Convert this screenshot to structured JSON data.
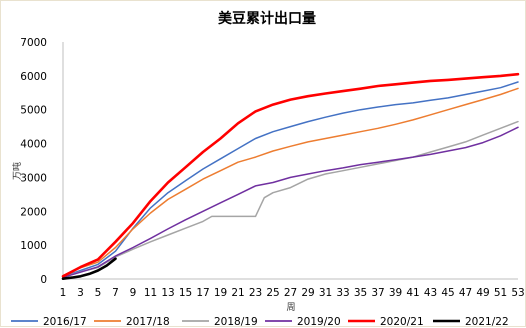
{
  "chart_data": {
    "type": "line",
    "title": "美豆累计出口量",
    "xlabel": "周",
    "ylabel": "万吨",
    "xlim": [
      1,
      53
    ],
    "ylim": [
      0,
      7000
    ],
    "x_ticks": [
      1,
      3,
      5,
      7,
      9,
      11,
      13,
      15,
      17,
      19,
      21,
      23,
      25,
      27,
      29,
      31,
      33,
      35,
      37,
      39,
      41,
      43,
      45,
      47,
      49,
      51,
      53
    ],
    "y_ticks": [
      0,
      1000,
      2000,
      3000,
      4000,
      5000,
      6000,
      7000
    ],
    "grid": false,
    "legend_position": "bottom",
    "series": [
      {
        "name": "2016/17",
        "color": "#4472c4",
        "x": [
          1,
          3,
          5,
          7,
          9,
          11,
          13,
          15,
          17,
          19,
          21,
          23,
          25,
          27,
          29,
          31,
          33,
          35,
          37,
          39,
          41,
          43,
          45,
          47,
          49,
          51,
          53
        ],
        "values": [
          60,
          250,
          430,
          820,
          1500,
          2100,
          2550,
          2900,
          3250,
          3550,
          3850,
          4150,
          4350,
          4500,
          4650,
          4780,
          4900,
          5000,
          5080,
          5150,
          5200,
          5280,
          5350,
          5450,
          5550,
          5650,
          5820
        ]
      },
      {
        "name": "2017/18",
        "color": "#ed7d31",
        "x": [
          1,
          3,
          5,
          7,
          9,
          11,
          13,
          15,
          17,
          19,
          21,
          23,
          25,
          27,
          29,
          31,
          33,
          35,
          37,
          39,
          41,
          43,
          45,
          47,
          49,
          51,
          53
        ],
        "values": [
          100,
          330,
          500,
          930,
          1480,
          1950,
          2350,
          2650,
          2950,
          3200,
          3450,
          3600,
          3780,
          3920,
          4050,
          4150,
          4250,
          4350,
          4450,
          4570,
          4700,
          4850,
          5000,
          5150,
          5300,
          5450,
          5630
        ]
      },
      {
        "name": "2018/19",
        "color": "#a5a5a5",
        "x": [
          1,
          3,
          5,
          7,
          9,
          11,
          13,
          15,
          17,
          18,
          19,
          21,
          23,
          24,
          25,
          27,
          29,
          31,
          33,
          35,
          37,
          39,
          41,
          43,
          45,
          47,
          49,
          51,
          53
        ],
        "values": [
          60,
          210,
          340,
          650,
          880,
          1100,
          1300,
          1500,
          1700,
          1850,
          1850,
          1850,
          1850,
          2400,
          2550,
          2700,
          2950,
          3100,
          3200,
          3300,
          3400,
          3500,
          3600,
          3750,
          3900,
          4050,
          4250,
          4450,
          4650
        ]
      },
      {
        "name": "2019/20",
        "color": "#7030a0",
        "x": [
          1,
          3,
          5,
          7,
          9,
          11,
          13,
          15,
          17,
          19,
          21,
          23,
          25,
          27,
          29,
          31,
          33,
          35,
          37,
          39,
          41,
          43,
          45,
          47,
          49,
          51,
          53
        ],
        "values": [
          50,
          200,
          360,
          680,
          930,
          1200,
          1480,
          1750,
          2000,
          2250,
          2500,
          2750,
          2850,
          3000,
          3100,
          3200,
          3280,
          3380,
          3450,
          3520,
          3600,
          3680,
          3780,
          3880,
          4030,
          4230,
          4480
        ]
      },
      {
        "name": "2020/21",
        "color": "#ff0000",
        "x": [
          1,
          3,
          5,
          7,
          9,
          11,
          13,
          15,
          17,
          19,
          21,
          23,
          25,
          27,
          29,
          31,
          33,
          35,
          37,
          39,
          41,
          43,
          45,
          47,
          49,
          51,
          53
        ],
        "values": [
          80,
          350,
          580,
          1100,
          1650,
          2300,
          2850,
          3300,
          3750,
          4150,
          4600,
          4950,
          5150,
          5300,
          5400,
          5480,
          5550,
          5620,
          5700,
          5750,
          5800,
          5850,
          5880,
          5920,
          5960,
          6000,
          6050
        ]
      },
      {
        "name": "2021/22",
        "color": "#000000",
        "x": [
          1,
          2,
          3,
          4,
          5,
          6,
          7
        ],
        "values": [
          10,
          40,
          80,
          150,
          250,
          400,
          600
        ]
      }
    ]
  }
}
